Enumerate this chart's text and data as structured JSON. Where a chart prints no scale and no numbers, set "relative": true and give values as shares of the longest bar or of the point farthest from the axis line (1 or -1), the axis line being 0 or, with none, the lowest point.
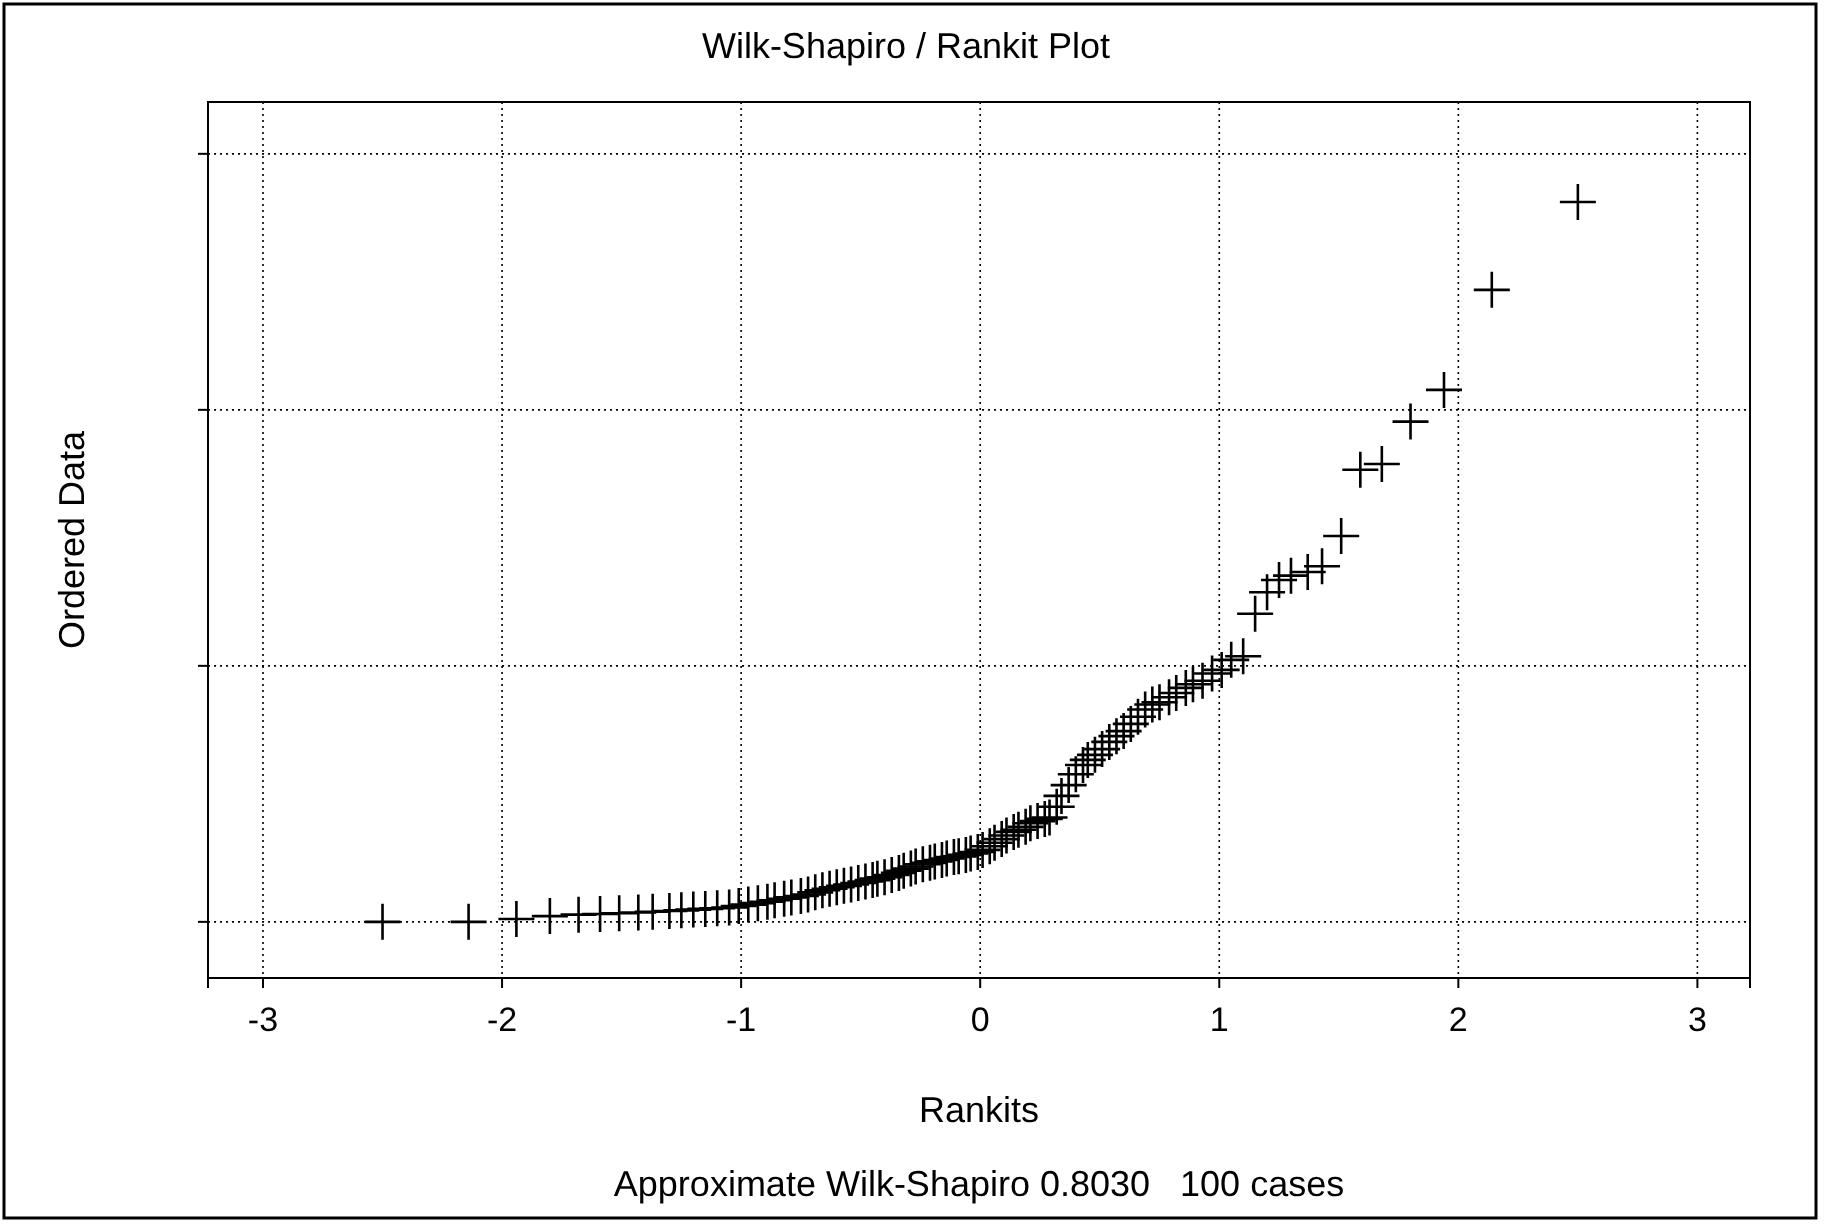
{
  "chart_data": {
    "type": "scatter",
    "title": "Wilk-Shapiro / Rankit Plot",
    "xlabel": "Rankits",
    "ylabel": "Ordered Data",
    "annotations": [
      "Approximate Wilk-Shapiro 0.8030   100 cases"
    ],
    "relative": true,
    "grid": true,
    "marker": "cross",
    "xlim": [
      -3.23,
      3.22
    ],
    "xticks": [
      -3,
      -2,
      -1,
      0,
      1,
      2,
      3
    ],
    "series": [
      {
        "color": "#000000",
        "x": [
          -2.5,
          -2.14,
          -1.94,
          -1.8,
          -1.68,
          -1.59,
          -1.51,
          -1.43,
          -1.37,
          -1.3,
          -1.25,
          -1.2,
          -1.15,
          -1.1,
          -1.05,
          -1.01,
          -0.97,
          -0.93,
          -0.89,
          -0.86,
          -0.82,
          -0.79,
          -0.75,
          -0.72,
          -0.69,
          -0.66,
          -0.63,
          -0.6,
          -0.57,
          -0.54,
          -0.51,
          -0.48,
          -0.45,
          -0.43,
          -0.4,
          -0.37,
          -0.34,
          -0.32,
          -0.29,
          -0.27,
          -0.24,
          -0.21,
          -0.19,
          -0.16,
          -0.14,
          -0.11,
          -0.09,
          -0.06,
          -0.04,
          -0.01,
          0.01,
          0.04,
          0.06,
          0.09,
          0.11,
          0.14,
          0.16,
          0.19,
          0.21,
          0.24,
          0.27,
          0.29,
          0.32,
          0.34,
          0.37,
          0.4,
          0.43,
          0.45,
          0.48,
          0.51,
          0.54,
          0.57,
          0.6,
          0.63,
          0.66,
          0.69,
          0.72,
          0.75,
          0.79,
          0.82,
          0.86,
          0.89,
          0.93,
          0.97,
          1.01,
          1.05,
          1.1,
          1.15,
          1.2,
          1.25,
          1.3,
          1.37,
          1.43,
          1.51,
          1.59,
          1.68,
          1.8,
          1.94,
          2.14,
          2.5
        ],
        "values": [
          0,
          0,
          0.004,
          0.008,
          0.01,
          0.011,
          0.012,
          0.013,
          0.014,
          0.015,
          0.016,
          0.017,
          0.018,
          0.019,
          0.02,
          0.022,
          0.024,
          0.026,
          0.028,
          0.03,
          0.032,
          0.034,
          0.036,
          0.038,
          0.041,
          0.044,
          0.046,
          0.048,
          0.05,
          0.052,
          0.054,
          0.056,
          0.058,
          0.06,
          0.062,
          0.065,
          0.068,
          0.071,
          0.074,
          0.077,
          0.08,
          0.082,
          0.084,
          0.086,
          0.088,
          0.09,
          0.091,
          0.093,
          0.095,
          0.097,
          0.1,
          0.105,
          0.11,
          0.115,
          0.12,
          0.125,
          0.128,
          0.132,
          0.137,
          0.14,
          0.143,
          0.145,
          0.16,
          0.175,
          0.19,
          0.205,
          0.218,
          0.225,
          0.232,
          0.24,
          0.25,
          0.258,
          0.265,
          0.275,
          0.285,
          0.295,
          0.302,
          0.305,
          0.312,
          0.318,
          0.325,
          0.33,
          0.335,
          0.345,
          0.35,
          0.364,
          0.369,
          0.428,
          0.458,
          0.475,
          0.481,
          0.486,
          0.494,
          0.536,
          0.628,
          0.636,
          0.695,
          0.739,
          0.878,
          1.0
        ]
      }
    ]
  }
}
